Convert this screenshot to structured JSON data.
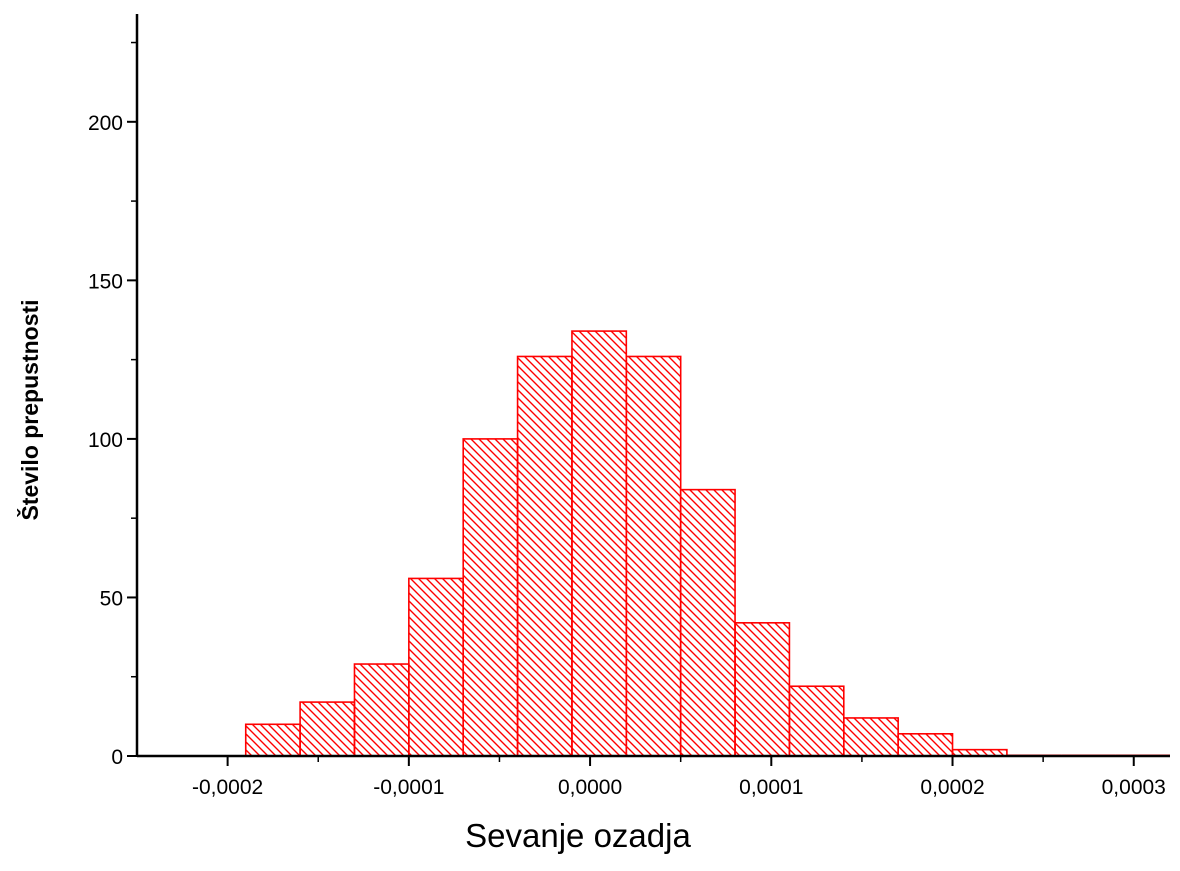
{
  "chart_data": {
    "type": "bar",
    "title": "",
    "xlabel": "Sevanje ozadja",
    "ylabel": "Število prepustnosti",
    "xlim": [
      -0.00025,
      0.00032
    ],
    "ylim": [
      0,
      234
    ],
    "bin_width": 3e-05,
    "x_ticks": [
      {
        "value": -0.0002,
        "label": "-0,0002"
      },
      {
        "value": -0.0001,
        "label": "-0,0001"
      },
      {
        "value": 0.0,
        "label": "0,0000"
      },
      {
        "value": 0.0001,
        "label": "0,0001"
      },
      {
        "value": 0.0002,
        "label": "0,0002"
      },
      {
        "value": 0.0003,
        "label": "0,0003"
      }
    ],
    "x_minor_ticks": [
      -0.00015,
      -5e-05,
      5e-05,
      0.00015,
      0.00025
    ],
    "y_ticks": [
      {
        "value": 0,
        "label": "0"
      },
      {
        "value": 50,
        "label": "50"
      },
      {
        "value": 100,
        "label": "100"
      },
      {
        "value": 150,
        "label": "150"
      },
      {
        "value": 200,
        "label": "200"
      }
    ],
    "y_minor_ticks": [
      25,
      75,
      125,
      175,
      225
    ],
    "bins": [
      {
        "start": -0.00019,
        "end": -0.00016,
        "count": 10
      },
      {
        "start": -0.00016,
        "end": -0.00013,
        "count": 17
      },
      {
        "start": -0.00013,
        "end": -0.0001,
        "count": 29
      },
      {
        "start": -0.0001,
        "end": -7e-05,
        "count": 56
      },
      {
        "start": -7e-05,
        "end": -4e-05,
        "count": 100
      },
      {
        "start": -4e-05,
        "end": -1e-05,
        "count": 126
      },
      {
        "start": -1e-05,
        "end": 2e-05,
        "count": 134
      },
      {
        "start": 2e-05,
        "end": 5e-05,
        "count": 126
      },
      {
        "start": 5e-05,
        "end": 8e-05,
        "count": 84
      },
      {
        "start": 8e-05,
        "end": 0.00011,
        "count": 42
      },
      {
        "start": 0.00011,
        "end": 0.00014,
        "count": 22
      },
      {
        "start": 0.00014,
        "end": 0.00017,
        "count": 12
      },
      {
        "start": 0.00017,
        "end": 0.0002,
        "count": 7
      },
      {
        "start": 0.0002,
        "end": 0.00023,
        "count": 2
      },
      {
        "start": 0.00023,
        "end": 0.00026,
        "count": 0
      },
      {
        "start": 0.00026,
        "end": 0.00029,
        "count": 0
      },
      {
        "start": 0.00029,
        "end": 0.00032,
        "count": 0
      }
    ],
    "bar_color": "#ff0000",
    "bar_fill": "hatched",
    "grid": false,
    "legend": "none"
  }
}
